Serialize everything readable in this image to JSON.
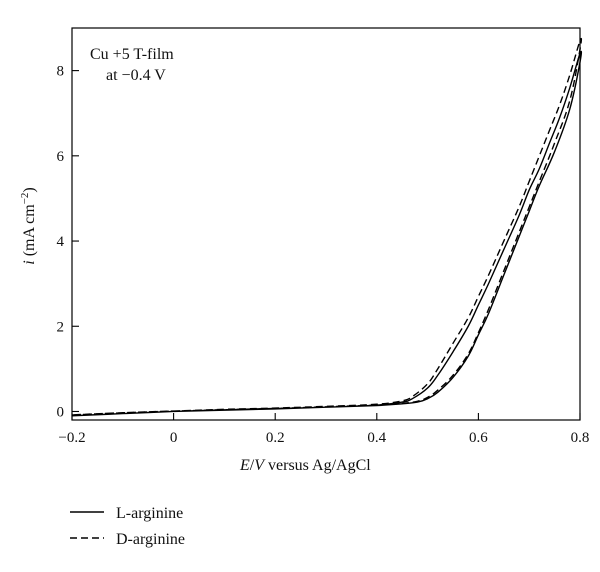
{
  "chart_data": {
    "type": "line",
    "title": "",
    "xlabel": "E/V versus Ag/AgCl",
    "xlabel_parts": {
      "e": "E",
      "slash": "/",
      "v": "V",
      "rest": " versus Ag/AgCl"
    },
    "ylabel": "i (mA cm−2)",
    "ylabel_parts": {
      "i": "i",
      "open": " (mA cm",
      "exp": "−2",
      "close": ")"
    },
    "xlim": [
      -0.2,
      0.8
    ],
    "ylim": [
      -0.2,
      9.0
    ],
    "xticks": [
      -0.2,
      0,
      0.2,
      0.4,
      0.6,
      0.8
    ],
    "xtick_labels": [
      "−0.2",
      "0",
      "0.2",
      "0.4",
      "0.6",
      "0.8"
    ],
    "yticks": [
      0,
      2,
      4,
      6,
      8
    ],
    "ytick_labels": [
      "0",
      "2",
      "4",
      "6",
      "8"
    ],
    "grid": false,
    "legend_position": "below-left",
    "annotation": {
      "line1": "Cu +5 T-film",
      "line2": "at −0.4 V"
    },
    "series": [
      {
        "name": "L-arginine",
        "style": "solid",
        "color": "#000000",
        "x": [
          -0.2,
          -0.1,
          0.0,
          0.1,
          0.2,
          0.3,
          0.4,
          0.45,
          0.48,
          0.5,
          0.52,
          0.55,
          0.58,
          0.6,
          0.62,
          0.65,
          0.68,
          0.7,
          0.72,
          0.75,
          0.78,
          0.8,
          0.8,
          0.78,
          0.76,
          0.74,
          0.72,
          0.7,
          0.68,
          0.65,
          0.62,
          0.6,
          0.58,
          0.55,
          0.52,
          0.5,
          0.47,
          0.45,
          0.4,
          0.3,
          0.2,
          0.1,
          0.0,
          -0.1,
          -0.2
        ],
        "y": [
          -0.1,
          -0.05,
          0.0,
          0.03,
          0.06,
          0.1,
          0.14,
          0.18,
          0.22,
          0.3,
          0.45,
          0.8,
          1.3,
          1.8,
          2.3,
          3.2,
          4.1,
          4.7,
          5.3,
          6.1,
          7.1,
          8.2,
          8.4,
          7.6,
          6.9,
          6.3,
          5.7,
          5.2,
          4.6,
          3.8,
          3.0,
          2.5,
          2.0,
          1.4,
          0.85,
          0.55,
          0.3,
          0.22,
          0.15,
          0.1,
          0.07,
          0.04,
          0.0,
          -0.05,
          -0.1
        ]
      },
      {
        "name": "D-arginine",
        "style": "dashed",
        "color": "#000000",
        "x": [
          -0.2,
          -0.1,
          0.0,
          0.1,
          0.2,
          0.3,
          0.4,
          0.45,
          0.48,
          0.5,
          0.52,
          0.55,
          0.58,
          0.6,
          0.62,
          0.65,
          0.68,
          0.7,
          0.72,
          0.75,
          0.78,
          0.8,
          0.8,
          0.78,
          0.76,
          0.74,
          0.72,
          0.7,
          0.68,
          0.65,
          0.62,
          0.6,
          0.58,
          0.55,
          0.52,
          0.5,
          0.47,
          0.45,
          0.4,
          0.3,
          0.2,
          0.1,
          0.0,
          -0.1,
          -0.2
        ],
        "y": [
          -0.08,
          -0.03,
          0.01,
          0.04,
          0.07,
          0.11,
          0.15,
          0.19,
          0.24,
          0.33,
          0.5,
          0.85,
          1.35,
          1.85,
          2.4,
          3.3,
          4.2,
          4.8,
          5.4,
          6.3,
          7.3,
          8.5,
          8.7,
          7.9,
          7.2,
          6.6,
          6.0,
          5.4,
          4.8,
          4.0,
          3.2,
          2.7,
          2.2,
          1.6,
          1.0,
          0.65,
          0.35,
          0.25,
          0.17,
          0.12,
          0.08,
          0.05,
          0.01,
          -0.03,
          -0.08
        ]
      }
    ]
  }
}
